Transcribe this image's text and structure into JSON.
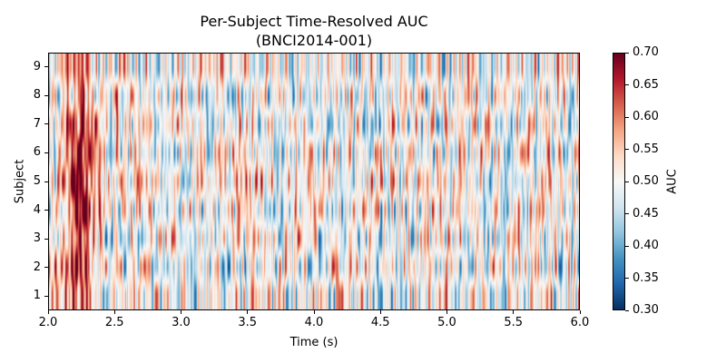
{
  "chart_data": {
    "type": "heatmap",
    "title": "Per-Subject Time-Resolved AUC",
    "subtitle": "(BNCI2014-001)",
    "xlabel": "Time (s)",
    "ylabel": "Subject",
    "xlim": [
      2.0,
      6.0
    ],
    "ylim": [
      0.5,
      9.5
    ],
    "x_ticks": [
      "2.0",
      "2.5",
      "3.0",
      "3.5",
      "4.0",
      "4.5",
      "5.0",
      "5.5",
      "6.0"
    ],
    "y_ticks": [
      "1",
      "2",
      "3",
      "4",
      "5",
      "6",
      "7",
      "8",
      "9"
    ],
    "subjects": [
      1,
      2,
      3,
      4,
      5,
      6,
      7,
      8,
      9
    ],
    "colorbar": {
      "label": "AUC",
      "cmap": "RdBu_r",
      "vmin": 0.3,
      "vmax": 0.7,
      "ticks": [
        "0.30",
        "0.35",
        "0.40",
        "0.45",
        "0.50",
        "0.55",
        "0.60",
        "0.65",
        "0.70"
      ]
    },
    "annotations": [],
    "grid": false,
    "description": "High AUC (~0.65-0.70) concentrated around 2.1-2.4 s for most subjects (strongest subjects 4-7); elsewhere values fluctuate around 0.50 (0.35-0.62)."
  }
}
